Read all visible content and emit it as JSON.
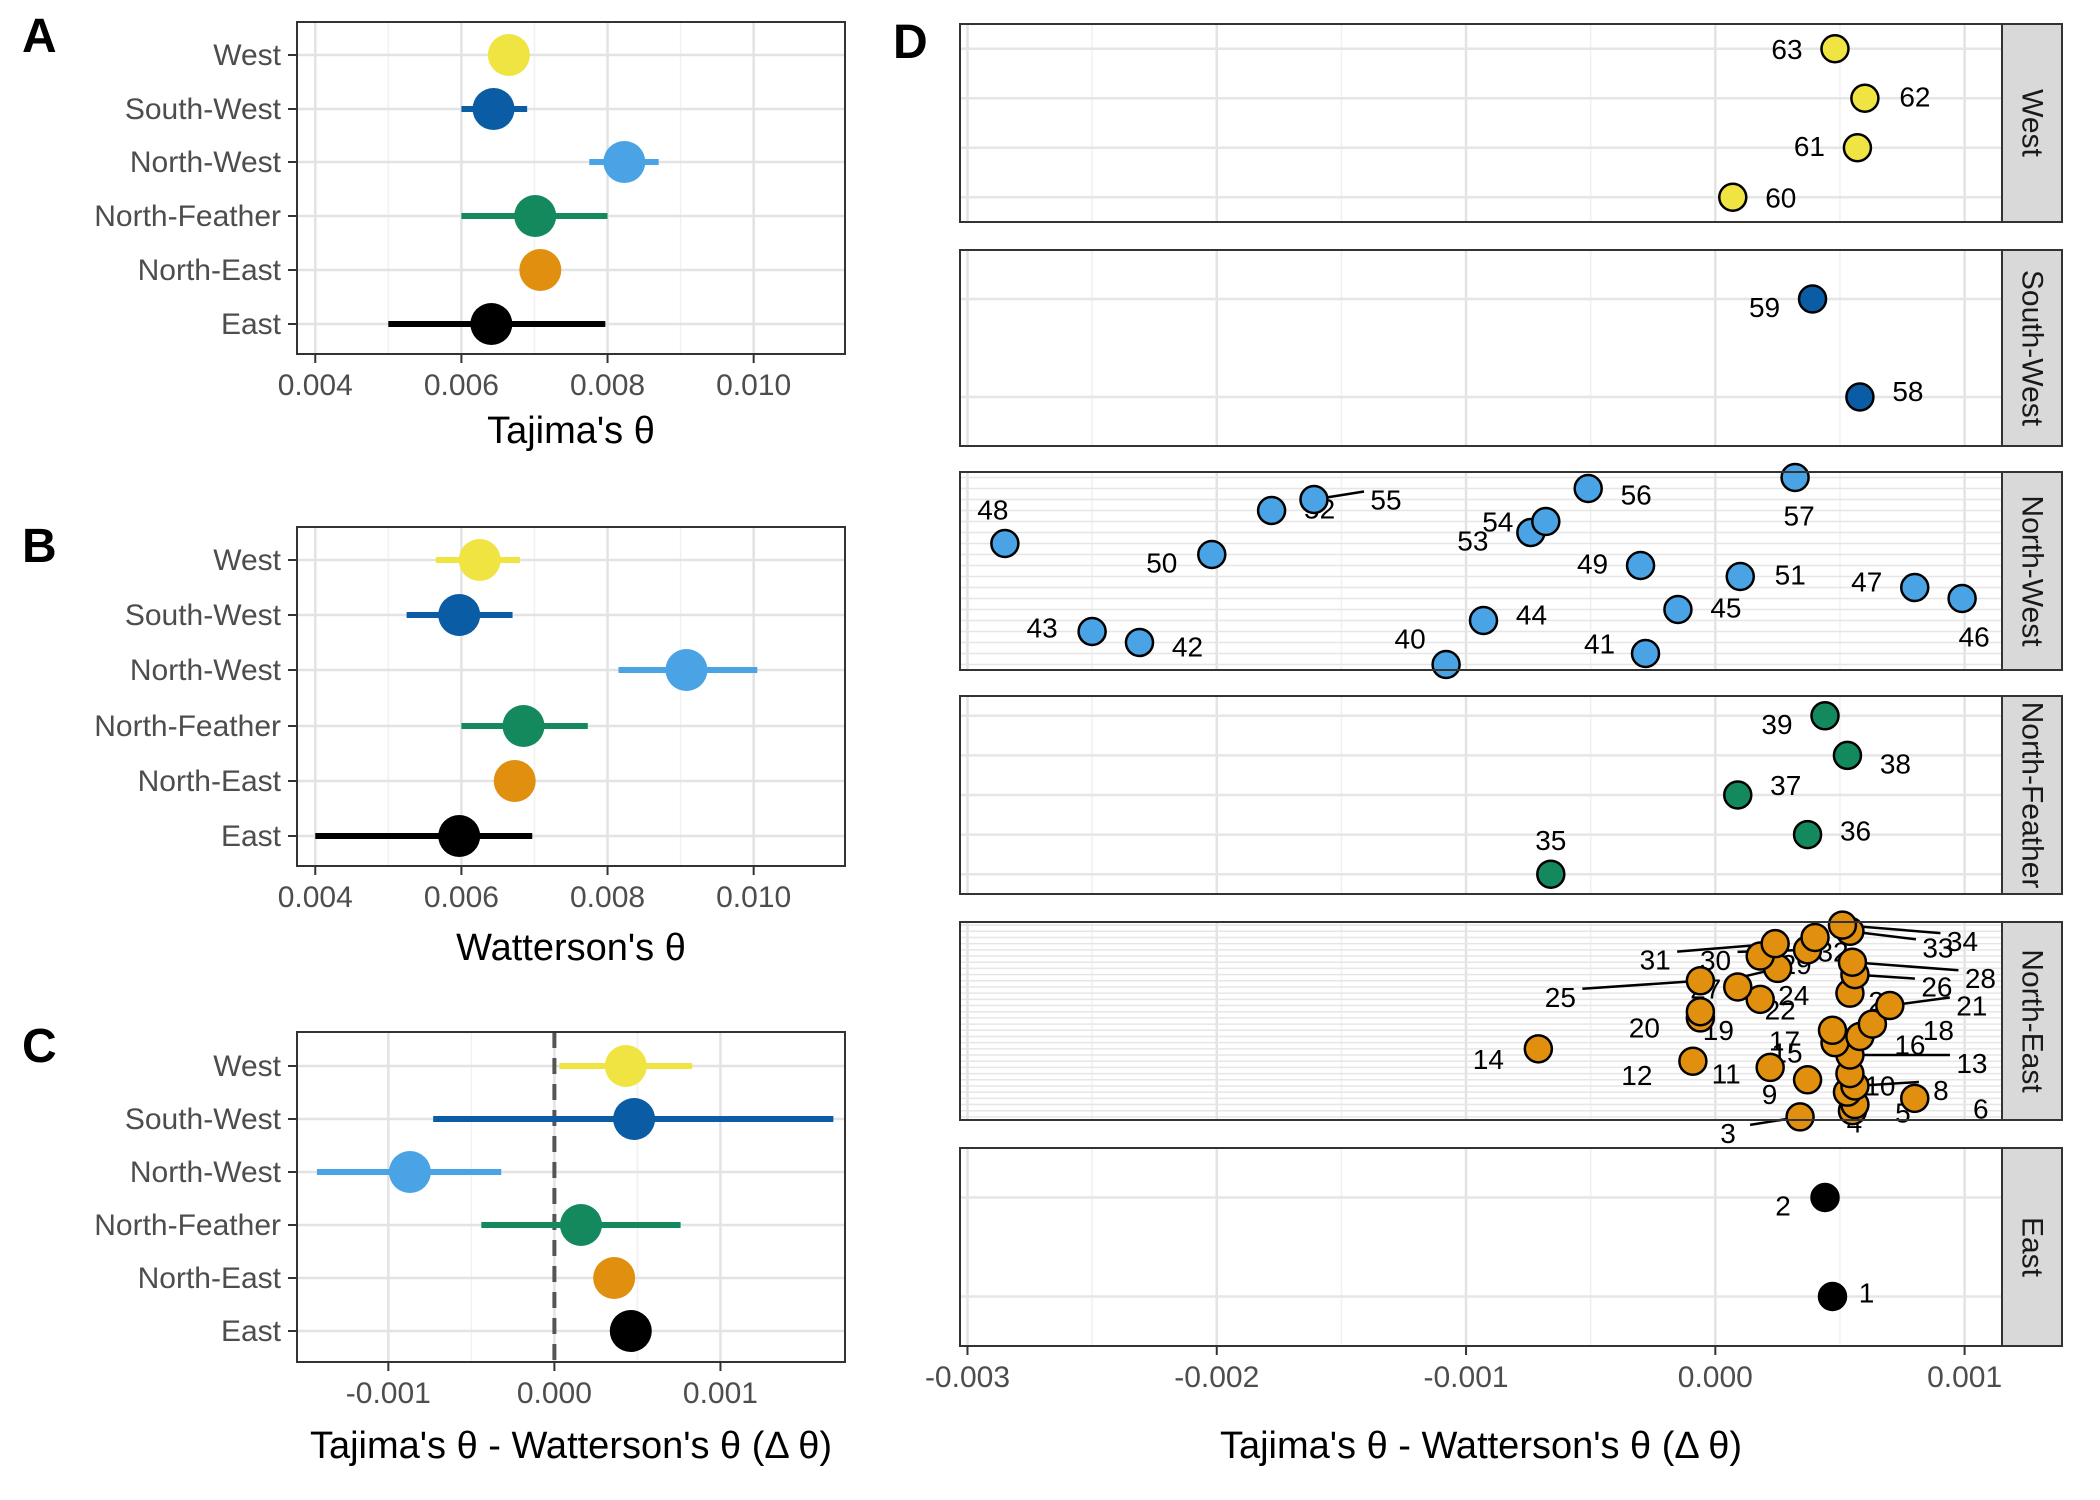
{
  "colors": {
    "West": "#F0E442",
    "South-West": "#0A5CA5",
    "North-West": "#4AA3E4",
    "North-Feather": "#15895E",
    "North-East": "#E0900E",
    "East": "#000000"
  },
  "chart_data": [
    {
      "panel": "A",
      "type": "scatter",
      "xlabel": "Tajima's θ",
      "ylabel": "",
      "xlim": [
        0.00375,
        0.01125
      ],
      "xticks": [
        "0.004",
        "0.006",
        "0.008",
        "0.010"
      ],
      "xtick_values": [
        0.004,
        0.006,
        0.008,
        0.01
      ],
      "categories": [
        "West",
        "South-West",
        "North-West",
        "North-Feather",
        "North-East",
        "East"
      ],
      "series": [
        {
          "name": "West",
          "values": [
            0.00665
          ],
          "low": [
            0.00665
          ],
          "high": [
            0.00665
          ]
        },
        {
          "name": "South-West",
          "values": [
            0.00644
          ],
          "low": [
            0.006
          ],
          "high": [
            0.0069
          ]
        },
        {
          "name": "North-West",
          "values": [
            0.00823
          ],
          "low": [
            0.00775
          ],
          "high": [
            0.0087
          ]
        },
        {
          "name": "North-Feather",
          "values": [
            0.00701
          ],
          "low": [
            0.006
          ],
          "high": [
            0.008
          ]
        },
        {
          "name": "North-East",
          "values": [
            0.00708
          ],
          "low": [
            0.00708
          ],
          "high": [
            0.00708
          ]
        },
        {
          "name": "East",
          "values": [
            0.00641
          ],
          "low": [
            0.005
          ],
          "high": [
            0.00797
          ]
        }
      ],
      "grid": true
    },
    {
      "panel": "B",
      "type": "scatter",
      "xlabel": "Watterson's θ",
      "ylabel": "",
      "xlim": [
        0.00375,
        0.01125
      ],
      "xticks": [
        "0.004",
        "0.006",
        "0.008",
        "0.010"
      ],
      "xtick_values": [
        0.004,
        0.006,
        0.008,
        0.01
      ],
      "categories": [
        "West",
        "South-West",
        "North-West",
        "North-Feather",
        "North-East",
        "East"
      ],
      "series": [
        {
          "name": "West",
          "values": [
            0.00625
          ],
          "low": [
            0.00565
          ],
          "high": [
            0.0068
          ]
        },
        {
          "name": "South-West",
          "values": [
            0.00597
          ],
          "low": [
            0.00525
          ],
          "high": [
            0.0067
          ]
        },
        {
          "name": "North-West",
          "values": [
            0.00908
          ],
          "low": [
            0.00815
          ],
          "high": [
            0.01005
          ]
        },
        {
          "name": "North-Feather",
          "values": [
            0.00685
          ],
          "low": [
            0.006
          ],
          "high": [
            0.00773
          ]
        },
        {
          "name": "North-East",
          "values": [
            0.00673
          ],
          "low": [
            0.00673
          ],
          "high": [
            0.00673
          ]
        },
        {
          "name": "East",
          "values": [
            0.00597
          ],
          "low": [
            0.004
          ],
          "high": [
            0.00697
          ]
        }
      ],
      "grid": true
    },
    {
      "panel": "C",
      "type": "scatter",
      "xlabel": "Tajima's θ - Watterson's θ (Δ θ)",
      "ylabel": "",
      "xlim": [
        -0.00155,
        0.00175
      ],
      "xticks": [
        "-0.001",
        "0.000",
        "0.001"
      ],
      "xtick_values": [
        -0.001,
        0.0,
        0.001
      ],
      "reference_line_x": 0.0,
      "categories": [
        "West",
        "South-West",
        "North-West",
        "North-Feather",
        "North-East",
        "East"
      ],
      "series": [
        {
          "name": "West",
          "values": [
            0.00043
          ],
          "low": [
            3e-05
          ],
          "high": [
            0.00083
          ]
        },
        {
          "name": "South-West",
          "values": [
            0.00048
          ],
          "low": [
            -0.00073
          ],
          "high": [
            0.00168
          ]
        },
        {
          "name": "North-West",
          "values": [
            -0.00087
          ],
          "low": [
            -0.00143
          ],
          "high": [
            -0.00032
          ]
        },
        {
          "name": "North-Feather",
          "values": [
            0.00016
          ],
          "low": [
            -0.00044
          ],
          "high": [
            0.00076
          ]
        },
        {
          "name": "North-East",
          "values": [
            0.00036
          ],
          "low": [
            0.00036
          ],
          "high": [
            0.00036
          ]
        },
        {
          "name": "East",
          "values": [
            0.00046
          ],
          "low": [
            0.00046
          ],
          "high": [
            0.00046
          ]
        }
      ],
      "grid": true
    },
    {
      "panel": "D",
      "type": "scatter",
      "xlabel": "Tajima's θ - Watterson's θ (Δ θ)",
      "ylabel": "",
      "xlim": [
        -0.00303,
        0.00115
      ],
      "xticks": [
        "-0.003",
        "-0.002",
        "-0.001",
        "0.000",
        "0.001"
      ],
      "xtick_values": [
        -0.003,
        -0.002,
        -0.001,
        0.0,
        0.001
      ],
      "facets": [
        {
          "name": "West",
          "ids": [
            "60",
            "61",
            "62",
            "63"
          ],
          "values": [
            7e-05,
            0.00057,
            0.0006,
            0.00048
          ]
        },
        {
          "name": "South-West",
          "ids": [
            "58",
            "59"
          ],
          "values": [
            0.00058,
            0.00039
          ]
        },
        {
          "name": "North-West",
          "ids": [
            "40",
            "41",
            "42",
            "43",
            "44",
            "45",
            "46",
            "47",
            "48",
            "49",
            "50",
            "51",
            "52",
            "53",
            "54",
            "55",
            "56",
            "57"
          ],
          "values": [
            -0.00108,
            -0.00028,
            -0.00231,
            -0.0025,
            -0.00093,
            -0.00015,
            0.00099,
            0.0008,
            -0.00285,
            -0.0003,
            -0.00202,
            0.0001,
            -0.00178,
            -0.00074,
            -0.00068,
            -0.00161,
            -0.00051,
            0.00032
          ]
        },
        {
          "name": "North-Feather",
          "ids": [
            "35",
            "36",
            "37",
            "38",
            "39"
          ],
          "values": [
            -0.00066,
            0.00037,
            9e-05,
            0.00053,
            0.00044
          ]
        },
        {
          "name": "North-East",
          "ids": [
            "3",
            "4",
            "5",
            "6",
            "7",
            "8",
            "9",
            "10",
            "11",
            "12",
            "13",
            "14",
            "15",
            "16",
            "17",
            "18",
            "19",
            "20",
            "21",
            "22",
            "23",
            "24",
            "25",
            "26",
            "27",
            "28",
            "29",
            "30",
            "31",
            "32",
            "33",
            "34"
          ],
          "values": [
            0.00034,
            0.00055,
            0.00056,
            0.0008,
            0.00053,
            0.00056,
            0.00037,
            0.00054,
            0.00022,
            -9e-05,
            0.00054,
            -0.00071,
            0.00048,
            0.00058,
            0.00047,
            0.00063,
            -6e-05,
            -6e-05,
            0.0007,
            0.00018,
            0.00054,
            9e-05,
            -6e-05,
            0.00056,
            0.00025,
            0.00055,
            0.00018,
            0.00037,
            0.00024,
            0.0004,
            0.00054,
            0.00051
          ]
        },
        {
          "name": "East",
          "ids": [
            "1",
            "2"
          ],
          "values": [
            0.00047,
            0.00044
          ]
        }
      ],
      "grid": true
    }
  ]
}
